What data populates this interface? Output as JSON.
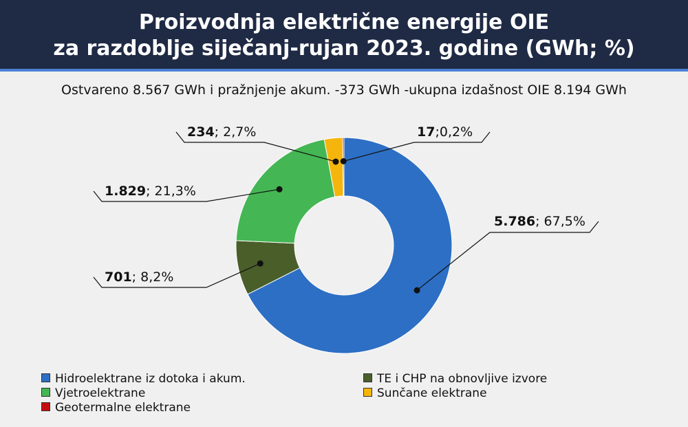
{
  "header": {
    "title_line1": "Proizvodnja električne energije OIE",
    "title_line2": "za razdoblje siječanj-rujan 2023. godine (GWh; %)"
  },
  "subtitle": "Ostvareno 8.567 GWh i pražnjenje akum. -373 GWh -ukupna izdašnost OIE 8.194 GWh",
  "chart_data": {
    "type": "pie",
    "donut": true,
    "title": "Proizvodnja električne energije OIE za razdoblje siječanj-rujan 2023. godine (GWh; %)",
    "unit": "GWh",
    "series": [
      {
        "name": "Hidroelektrane iz dotoka i akum.",
        "value": 5786,
        "value_label": "5.786",
        "percent_label": "67,5%",
        "color": "#2d6fc4"
      },
      {
        "name": "TE i CHP na obnovljive izvore",
        "value": 701,
        "value_label": "701",
        "percent_label": "8,2%",
        "color": "#4a5e2a"
      },
      {
        "name": "Vjetroelektrane",
        "value": 1829,
        "value_label": "1.829",
        "percent_label": "21,3%",
        "color": "#44b653"
      },
      {
        "name": "Sunčane elektrane",
        "value": 234,
        "value_label": "234",
        "percent_label": "2,7%",
        "color": "#f5b50c"
      },
      {
        "name": "Geotermalne elektrane",
        "value": 17,
        "value_label": "17",
        "percent_label": "0,2%",
        "color": "#c40f0f"
      }
    ],
    "legend_position": "bottom"
  }
}
